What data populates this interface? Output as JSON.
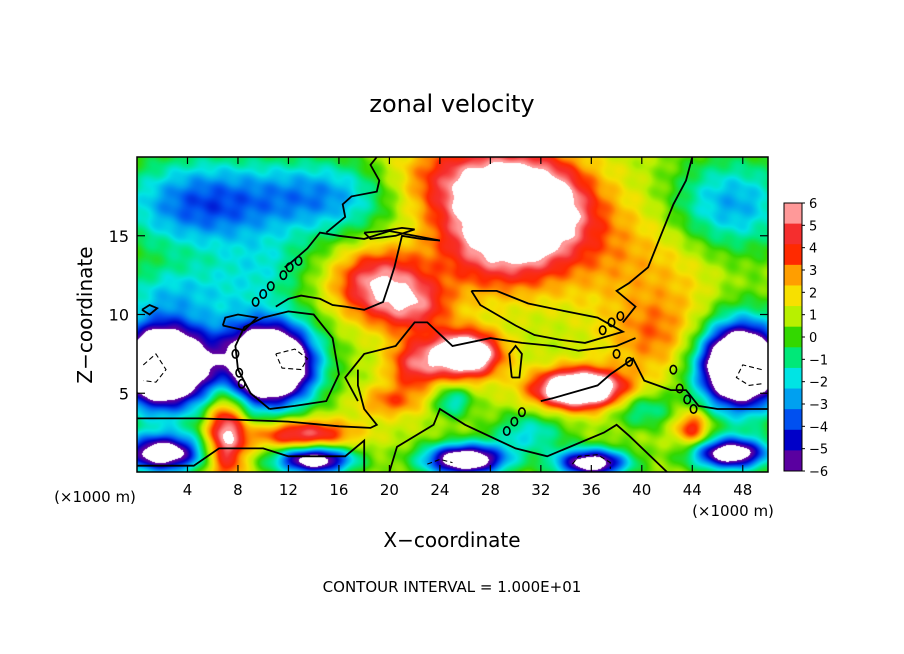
{
  "chart_data": {
    "type": "heatmap",
    "title": "zonal velocity",
    "xlabel": "X−coordinate",
    "ylabel": "Z−coordinate",
    "x_unit_left": "(×1000 m)",
    "x_unit_right": "(×1000 m)",
    "xlim": [
      0,
      50
    ],
    "ylim": [
      0,
      20
    ],
    "x_ticks": [
      4,
      8,
      12,
      16,
      20,
      24,
      28,
      32,
      36,
      40,
      44,
      48
    ],
    "y_ticks": [
      5,
      10,
      15
    ],
    "x_tick_labels": [
      "4",
      "8",
      "12",
      "16",
      "20",
      "24",
      "28",
      "32",
      "36",
      "40",
      "44",
      "48"
    ],
    "y_tick_labels": [
      "5",
      "10",
      "15"
    ],
    "colorbar": {
      "levels": [
        6,
        5,
        4,
        3,
        2,
        1,
        0,
        -1,
        -2,
        -3,
        -4,
        -5,
        -6
      ],
      "labels": [
        "6",
        "5",
        "4",
        "3",
        "2",
        "1",
        "0",
        "−1",
        "−2",
        "−3",
        "−4",
        "−5",
        "−6"
      ],
      "colors": [
        "#ff9999",
        "#f52e2e",
        "#ff2a00",
        "#ff9e00",
        "#f7e000",
        "#b8f000",
        "#33d800",
        "#00e878",
        "#00e4e4",
        "#00a0f0",
        "#0050f0",
        "#0000c8",
        "#5a00a0"
      ],
      "clip_color": "#ffffff"
    },
    "contour_interval_label": "CONTOUR INTERVAL = 1.000E+01",
    "blobs": [
      {
        "x": 31,
        "y": 17,
        "v": 7.5,
        "rx": 4.5,
        "ry": 2.8
      },
      {
        "x": 29,
        "y": 14.5,
        "v": 5,
        "rx": 5.5,
        "ry": 3.0
      },
      {
        "x": 26,
        "y": 18.5,
        "v": 4,
        "rx": 6,
        "ry": 2.5
      },
      {
        "x": 19,
        "y": 12,
        "v": 5,
        "rx": 3.5,
        "ry": 2.2
      },
      {
        "x": 22,
        "y": 10.5,
        "v": 3.5,
        "rx": 3.0,
        "ry": 1.8
      },
      {
        "x": 26,
        "y": 7.5,
        "v": 9,
        "rx": 2.6,
        "ry": 1.4
      },
      {
        "x": 22,
        "y": 6.8,
        "v": 4,
        "rx": 2.2,
        "ry": 1.6
      },
      {
        "x": 35,
        "y": 5.3,
        "v": 10,
        "rx": 3.4,
        "ry": 1.2
      },
      {
        "x": 10.8,
        "y": 6.8,
        "v": -10,
        "rx": 3.0,
        "ry": 2.2
      },
      {
        "x": 9.5,
        "y": 7.2,
        "v": -6,
        "rx": 4.2,
        "ry": 3.2
      },
      {
        "x": 2.0,
        "y": 6.8,
        "v": -10,
        "rx": 3.0,
        "ry": 2.2
      },
      {
        "x": 2.0,
        "y": 6.8,
        "v": -6,
        "rx": 4.2,
        "ry": 3.2
      },
      {
        "x": 47.8,
        "y": 6.8,
        "v": -10,
        "rx": 2.8,
        "ry": 2.2
      },
      {
        "x": 47.8,
        "y": 6.8,
        "v": -6,
        "rx": 3.8,
        "ry": 3.2
      },
      {
        "x": 7.0,
        "y": 2.5,
        "v": 6,
        "rx": 1.6,
        "ry": 3.0
      },
      {
        "x": 13,
        "y": 2.4,
        "v": 5,
        "rx": 4.0,
        "ry": 1.0
      },
      {
        "x": 2.0,
        "y": 1.2,
        "v": -9,
        "rx": 3.2,
        "ry": 1.2
      },
      {
        "x": 14,
        "y": 0.8,
        "v": -9,
        "rx": 3.0,
        "ry": 0.9
      },
      {
        "x": 26,
        "y": 0.8,
        "v": -10,
        "rx": 3.2,
        "ry": 1.0
      },
      {
        "x": 36,
        "y": 0.6,
        "v": -9,
        "rx": 2.8,
        "ry": 0.9
      },
      {
        "x": 47,
        "y": 1.2,
        "v": -9,
        "rx": 3.0,
        "ry": 1.0
      },
      {
        "x": 44,
        "y": 2.8,
        "v": 4,
        "rx": 1.4,
        "ry": 1.2
      },
      {
        "x": 41,
        "y": 8.5,
        "v": 2,
        "rx": 4.0,
        "ry": 2.5
      },
      {
        "x": 38,
        "y": 14,
        "v": 1.5,
        "rx": 4.5,
        "ry": 4.0
      },
      {
        "x": 43,
        "y": 12,
        "v": 1.0,
        "rx": 4.0,
        "ry": 5.0
      },
      {
        "x": 5,
        "y": 17,
        "v": -5,
        "rx": 6.5,
        "ry": 3.0
      },
      {
        "x": 15,
        "y": 17.5,
        "v": -4,
        "rx": 6.0,
        "ry": 2.5
      },
      {
        "x": 47,
        "y": 17,
        "v": -4,
        "rx": 5.0,
        "ry": 3.0
      },
      {
        "x": 3,
        "y": 11.5,
        "v": -2.5,
        "rx": 5.0,
        "ry": 1.8
      },
      {
        "x": 10,
        "y": 13,
        "v": -2,
        "rx": 4.0,
        "ry": 2.0
      },
      {
        "x": 20,
        "y": 4.5,
        "v": 2.5,
        "rx": 2.5,
        "ry": 1.0
      },
      {
        "x": 31,
        "y": 2.5,
        "v": -3,
        "rx": 3.0,
        "ry": 1.3
      },
      {
        "x": 40,
        "y": 4.0,
        "v": -2.5,
        "rx": 2.5,
        "ry": 1.2
      },
      {
        "x": 25,
        "y": 4.5,
        "v": -3,
        "rx": 1.5,
        "ry": 1.0
      }
    ],
    "background_level": 1.0,
    "contours": [
      {
        "style": "solid",
        "points": [
          [
            20,
            0
          ],
          [
            20.6,
            1.6
          ],
          [
            23.5,
            3.0
          ],
          [
            24.0,
            4.0
          ],
          [
            26.0,
            3.0
          ],
          [
            30.0,
            1.5
          ],
          [
            32.5,
            1.0
          ],
          [
            37.0,
            2.5
          ],
          [
            38.0,
            3.0
          ],
          [
            39.0,
            2.3
          ],
          [
            42.0,
            0
          ]
        ]
      },
      {
        "style": "solid",
        "points": [
          [
            0,
            3.4
          ],
          [
            5.0,
            3.4
          ],
          [
            12.0,
            3.2
          ],
          [
            16.0,
            2.9
          ],
          [
            18.5,
            2.8
          ],
          [
            19.0,
            3.0
          ],
          [
            18.0,
            4.0
          ],
          [
            17.5,
            5.5
          ],
          [
            17.5,
            6.5
          ]
        ]
      },
      {
        "style": "solid",
        "points": [
          [
            0,
            0.4
          ],
          [
            4.5,
            0.4
          ],
          [
            6.5,
            1.5
          ],
          [
            10.0,
            1.5
          ],
          [
            12.0,
            1.0
          ],
          [
            16.5,
            1.0
          ],
          [
            18.0,
            2.0
          ],
          [
            18.0,
            0
          ]
        ]
      },
      {
        "style": "solid",
        "points": [
          [
            32.0,
            4.5
          ],
          [
            33.0,
            4.7
          ],
          [
            36.5,
            5.5
          ],
          [
            37.5,
            6.2
          ],
          [
            38.6,
            6.8
          ],
          [
            39.3,
            7.2
          ],
          [
            40.2,
            5.8
          ],
          [
            42.3,
            5.2
          ],
          [
            43.5,
            5.2
          ],
          [
            44.5,
            4.2
          ],
          [
            46.0,
            4.0
          ],
          [
            50,
            4.0
          ]
        ]
      },
      {
        "style": "solid",
        "points": [
          [
            10.5,
            4.0
          ],
          [
            12.5,
            4.2
          ],
          [
            15.0,
            4.5
          ],
          [
            16.0,
            6.2
          ],
          [
            15.5,
            8.5
          ],
          [
            14.0,
            10.0
          ],
          [
            12.0,
            10.2
          ],
          [
            10.0,
            9.8
          ],
          [
            8.5,
            9.2
          ],
          [
            7.8,
            8.0
          ],
          [
            8.0,
            6.5
          ],
          [
            9.0,
            5.0
          ],
          [
            10.5,
            4.0
          ]
        ]
      },
      {
        "style": "solid",
        "points": [
          [
            17.5,
            4.5
          ],
          [
            16.5,
            6.0
          ],
          [
            18.0,
            7.5
          ],
          [
            20.5,
            8.0
          ],
          [
            22.0,
            9.5
          ],
          [
            23.0,
            9.5
          ],
          [
            25.0,
            8.0
          ],
          [
            28.0,
            8.5
          ],
          [
            30.5,
            8.2
          ],
          [
            33.0,
            8.0
          ],
          [
            35.0,
            7.7
          ],
          [
            38.0,
            8.0
          ],
          [
            39.5,
            8.5
          ]
        ]
      },
      {
        "style": "solid",
        "points": [
          [
            26.5,
            11.5
          ],
          [
            28.5,
            11.5
          ],
          [
            31.0,
            10.7
          ],
          [
            34.0,
            10.2
          ],
          [
            36.5,
            9.8
          ],
          [
            38.5,
            8.9
          ],
          [
            35.5,
            8.2
          ],
          [
            33.5,
            8.4
          ],
          [
            31.5,
            8.7
          ],
          [
            30.0,
            9.3
          ],
          [
            27.2,
            10.6
          ],
          [
            26.5,
            11.5
          ]
        ]
      },
      {
        "style": "solid",
        "points": [
          [
            11.0,
            10.5
          ],
          [
            12.0,
            11.0
          ],
          [
            13.0,
            11.2
          ],
          [
            14.5,
            11.0
          ],
          [
            15.5,
            10.6
          ],
          [
            16.5,
            10.5
          ],
          [
            18.0,
            10.3
          ],
          [
            19.5,
            10.8
          ],
          [
            20.0,
            12.0
          ],
          [
            20.4,
            13.0
          ],
          [
            21.0,
            15.0
          ],
          [
            22.5,
            14.8
          ],
          [
            24.0,
            14.7
          ]
        ]
      },
      {
        "style": "solid",
        "points": [
          [
            24.0,
            14.7
          ],
          [
            22.0,
            15.0
          ],
          [
            20.0,
            15.3
          ],
          [
            18.0,
            14.8
          ],
          [
            16.0,
            15.0
          ],
          [
            14.5,
            15.2
          ],
          [
            13.5,
            14.2
          ],
          [
            12.2,
            13.3
          ],
          [
            11.7,
            13.0
          ]
        ]
      },
      {
        "style": "solid",
        "points": [
          [
            15.0,
            15.2
          ],
          [
            16.5,
            16.2
          ],
          [
            16.3,
            17.0
          ],
          [
            17.0,
            17.5
          ],
          [
            19.0,
            17.8
          ],
          [
            19.2,
            18.5
          ],
          [
            18.5,
            19.5
          ],
          [
            19.0,
            20.0
          ]
        ]
      },
      {
        "style": "solid",
        "points": [
          [
            44.0,
            20.0
          ],
          [
            43.5,
            18.5
          ],
          [
            42.5,
            17.0
          ],
          [
            41.5,
            15.0
          ],
          [
            40.5,
            13.0
          ],
          [
            39.0,
            12.0
          ],
          [
            38.0,
            11.5
          ],
          [
            39.5,
            10.5
          ],
          [
            38.5,
            9.5
          ]
        ]
      },
      {
        "style": "solid",
        "points": [
          [
            18.0,
            15.2
          ],
          [
            19.5,
            15.3
          ],
          [
            21.0,
            15.5
          ],
          [
            22.0,
            15.4
          ],
          [
            20.5,
            15.0
          ],
          [
            18.5,
            14.8
          ],
          [
            18.0,
            15.2
          ]
        ]
      },
      {
        "style": "solid",
        "points": [
          [
            29.7,
            6.0
          ],
          [
            30.3,
            6.0
          ],
          [
            30.5,
            7.5
          ],
          [
            30.0,
            8.0
          ],
          [
            29.5,
            7.5
          ],
          [
            29.7,
            6.0
          ]
        ]
      },
      {
        "style": "solid",
        "points": [
          [
            6.8,
            9.3
          ],
          [
            8.5,
            9.0
          ],
          [
            9.5,
            9.8
          ],
          [
            8.0,
            10.0
          ],
          [
            7.0,
            9.8
          ],
          [
            6.8,
            9.3
          ]
        ]
      },
      {
        "style": "solid",
        "points": [
          [
            0.4,
            10.3
          ],
          [
            1.0,
            10.6
          ],
          [
            1.6,
            10.4
          ],
          [
            1.0,
            10.0
          ],
          [
            0.4,
            10.3
          ]
        ]
      },
      {
        "style": "dashed",
        "points": [
          [
            11.0,
            7.5
          ],
          [
            12.5,
            7.8
          ],
          [
            13.5,
            7.2
          ],
          [
            13.0,
            6.5
          ],
          [
            11.5,
            6.6
          ],
          [
            11.0,
            7.5
          ]
        ]
      },
      {
        "style": "dashed",
        "points": [
          [
            0.5,
            6.8
          ],
          [
            1.5,
            7.5
          ],
          [
            2.3,
            6.5
          ],
          [
            1.5,
            5.7
          ],
          [
            0.5,
            5.8
          ]
        ]
      },
      {
        "style": "dashed",
        "points": [
          [
            49.5,
            6.5
          ],
          [
            48.0,
            6.8
          ],
          [
            47.5,
            6.0
          ],
          [
            48.5,
            5.5
          ],
          [
            49.5,
            5.6
          ]
        ]
      },
      {
        "style": "dashed",
        "points": [
          [
            34.5,
            0.5
          ],
          [
            35.0,
            1.0
          ],
          [
            36.5,
            1.1
          ],
          [
            37.5,
            0.6
          ],
          [
            37.5,
            0.2
          ]
        ]
      },
      {
        "style": "dashed",
        "points": [
          [
            23.0,
            0.5
          ],
          [
            24.0,
            0.8
          ],
          [
            25.0,
            0.6
          ]
        ]
      }
    ],
    "ring_contours": [
      {
        "x": 11.6,
        "y": 12.5
      },
      {
        "x": 12.1,
        "y": 13.0
      },
      {
        "x": 12.8,
        "y": 13.4
      },
      {
        "x": 9.4,
        "y": 10.8
      },
      {
        "x": 10.0,
        "y": 11.3
      },
      {
        "x": 10.6,
        "y": 11.8
      },
      {
        "x": 7.8,
        "y": 7.5
      },
      {
        "x": 8.1,
        "y": 6.3
      },
      {
        "x": 8.3,
        "y": 5.6
      },
      {
        "x": 29.3,
        "y": 2.6
      },
      {
        "x": 29.9,
        "y": 3.2
      },
      {
        "x": 30.5,
        "y": 3.8
      },
      {
        "x": 36.9,
        "y": 9.0
      },
      {
        "x": 37.6,
        "y": 9.5
      },
      {
        "x": 38.3,
        "y": 9.9
      },
      {
        "x": 38.0,
        "y": 7.5
      },
      {
        "x": 39.0,
        "y": 7.0
      },
      {
        "x": 42.5,
        "y": 6.5
      },
      {
        "x": 43.0,
        "y": 5.3
      },
      {
        "x": 43.6,
        "y": 4.6
      },
      {
        "x": 44.1,
        "y": 4.0
      }
    ]
  }
}
